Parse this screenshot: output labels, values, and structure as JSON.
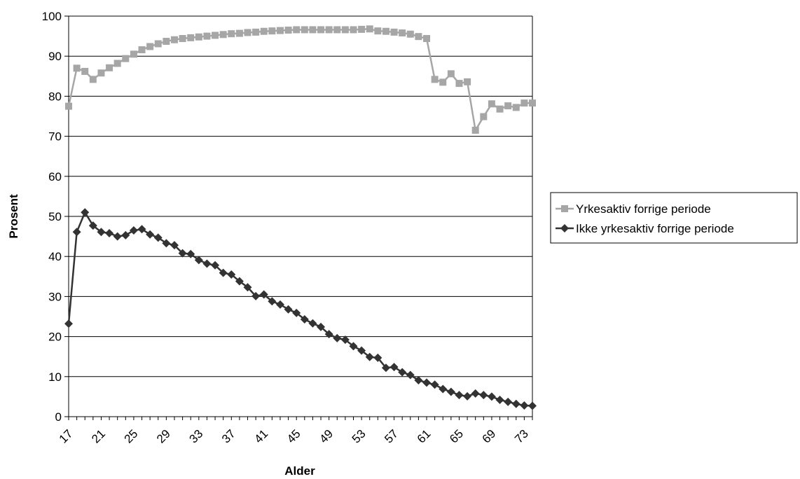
{
  "chart_data": {
    "type": "line",
    "xlabel": "Alder",
    "ylabel": "Prosent",
    "ylim": [
      0,
      100
    ],
    "yticks": [
      0,
      10,
      20,
      30,
      40,
      50,
      60,
      70,
      80,
      90,
      100
    ],
    "xlim": [
      17,
      74
    ],
    "xticks": [
      17,
      21,
      25,
      29,
      33,
      37,
      41,
      45,
      49,
      53,
      57,
      61,
      65,
      69,
      73
    ],
    "grid": "horizontal",
    "legend_position": "right",
    "x": [
      17,
      18,
      19,
      20,
      21,
      22,
      23,
      24,
      25,
      26,
      27,
      28,
      29,
      30,
      31,
      32,
      33,
      34,
      35,
      36,
      37,
      38,
      39,
      40,
      41,
      42,
      43,
      44,
      45,
      46,
      47,
      48,
      49,
      50,
      51,
      52,
      53,
      54,
      55,
      56,
      57,
      58,
      59,
      60,
      61,
      62,
      63,
      64,
      65,
      66,
      67,
      68,
      69,
      70,
      71,
      72,
      73,
      74
    ],
    "series": [
      {
        "name": "Yrkesaktiv forrige periode",
        "color": "#a6a6a6",
        "marker": "square",
        "values": [
          77.5,
          87,
          86.2,
          84.2,
          85.8,
          87.1,
          88.2,
          89.4,
          90.5,
          91.6,
          92.4,
          93.1,
          93.7,
          94.1,
          94.4,
          94.6,
          94.8,
          95.0,
          95.2,
          95.4,
          95.6,
          95.7,
          95.9,
          96.0,
          96.2,
          96.3,
          96.4,
          96.5,
          96.6,
          96.6,
          96.6,
          96.6,
          96.6,
          96.6,
          96.6,
          96.6,
          96.7,
          96.8,
          96.3,
          96.2,
          96.0,
          95.8,
          95.5,
          94.9,
          94.4,
          84.2,
          83.5,
          85.6,
          83.2,
          83.6,
          71.5,
          74.9,
          78.1,
          76.8,
          77.6,
          77.2,
          78.3,
          78.3
        ]
      },
      {
        "name": "Ikke yrkesaktiv forrige periode",
        "color": "#333333",
        "marker": "diamond",
        "values": [
          23.2,
          46.1,
          51.0,
          47.7,
          46.1,
          45.8,
          45.0,
          45.3,
          46.5,
          46.8,
          45.5,
          44.7,
          43.3,
          42.8,
          40.8,
          40.6,
          39.1,
          38.2,
          37.8,
          35.9,
          35.5,
          33.8,
          32.3,
          30.1,
          30.5,
          28.8,
          28.0,
          26.8,
          25.9,
          24.3,
          23.3,
          22.4,
          20.6,
          19.6,
          19.2,
          17.6,
          16.5,
          14.9,
          14.7,
          12.2,
          12.4,
          11.1,
          10.4,
          9.1,
          8.5,
          8.0,
          6.9,
          6.2,
          5.4,
          5.1,
          5.8,
          5.4,
          5.0,
          4.2,
          3.7,
          3.2,
          2.8,
          2.7
        ]
      }
    ]
  }
}
